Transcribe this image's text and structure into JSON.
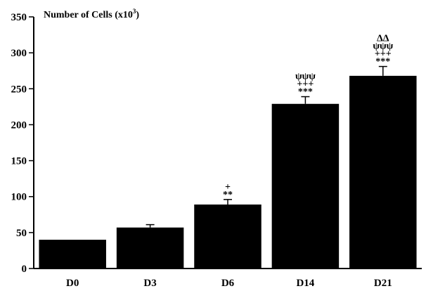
{
  "chart_data": {
    "type": "bar",
    "title": "Number of Cells (x10",
    "title_superscript": "3",
    "title_suffix": ")",
    "xlabel": "",
    "ylabel": "",
    "categories": [
      "D0",
      "D3",
      "D6",
      "D14",
      "D21"
    ],
    "values": [
      40,
      57,
      89,
      229,
      268
    ],
    "errors": [
      0,
      4,
      7,
      10,
      13
    ],
    "significance": [
      [],
      [],
      [
        "+",
        "**"
      ],
      [
        "ψψψ",
        "+++",
        "***"
      ],
      [
        "ΔΔ",
        "ψψψ",
        "+++",
        "***"
      ]
    ],
    "y_ticks": [
      0,
      50,
      100,
      150,
      200,
      250,
      300,
      350
    ],
    "ylim": [
      0,
      350
    ],
    "grid": false,
    "legend": "none",
    "bar_color": "#000000"
  }
}
